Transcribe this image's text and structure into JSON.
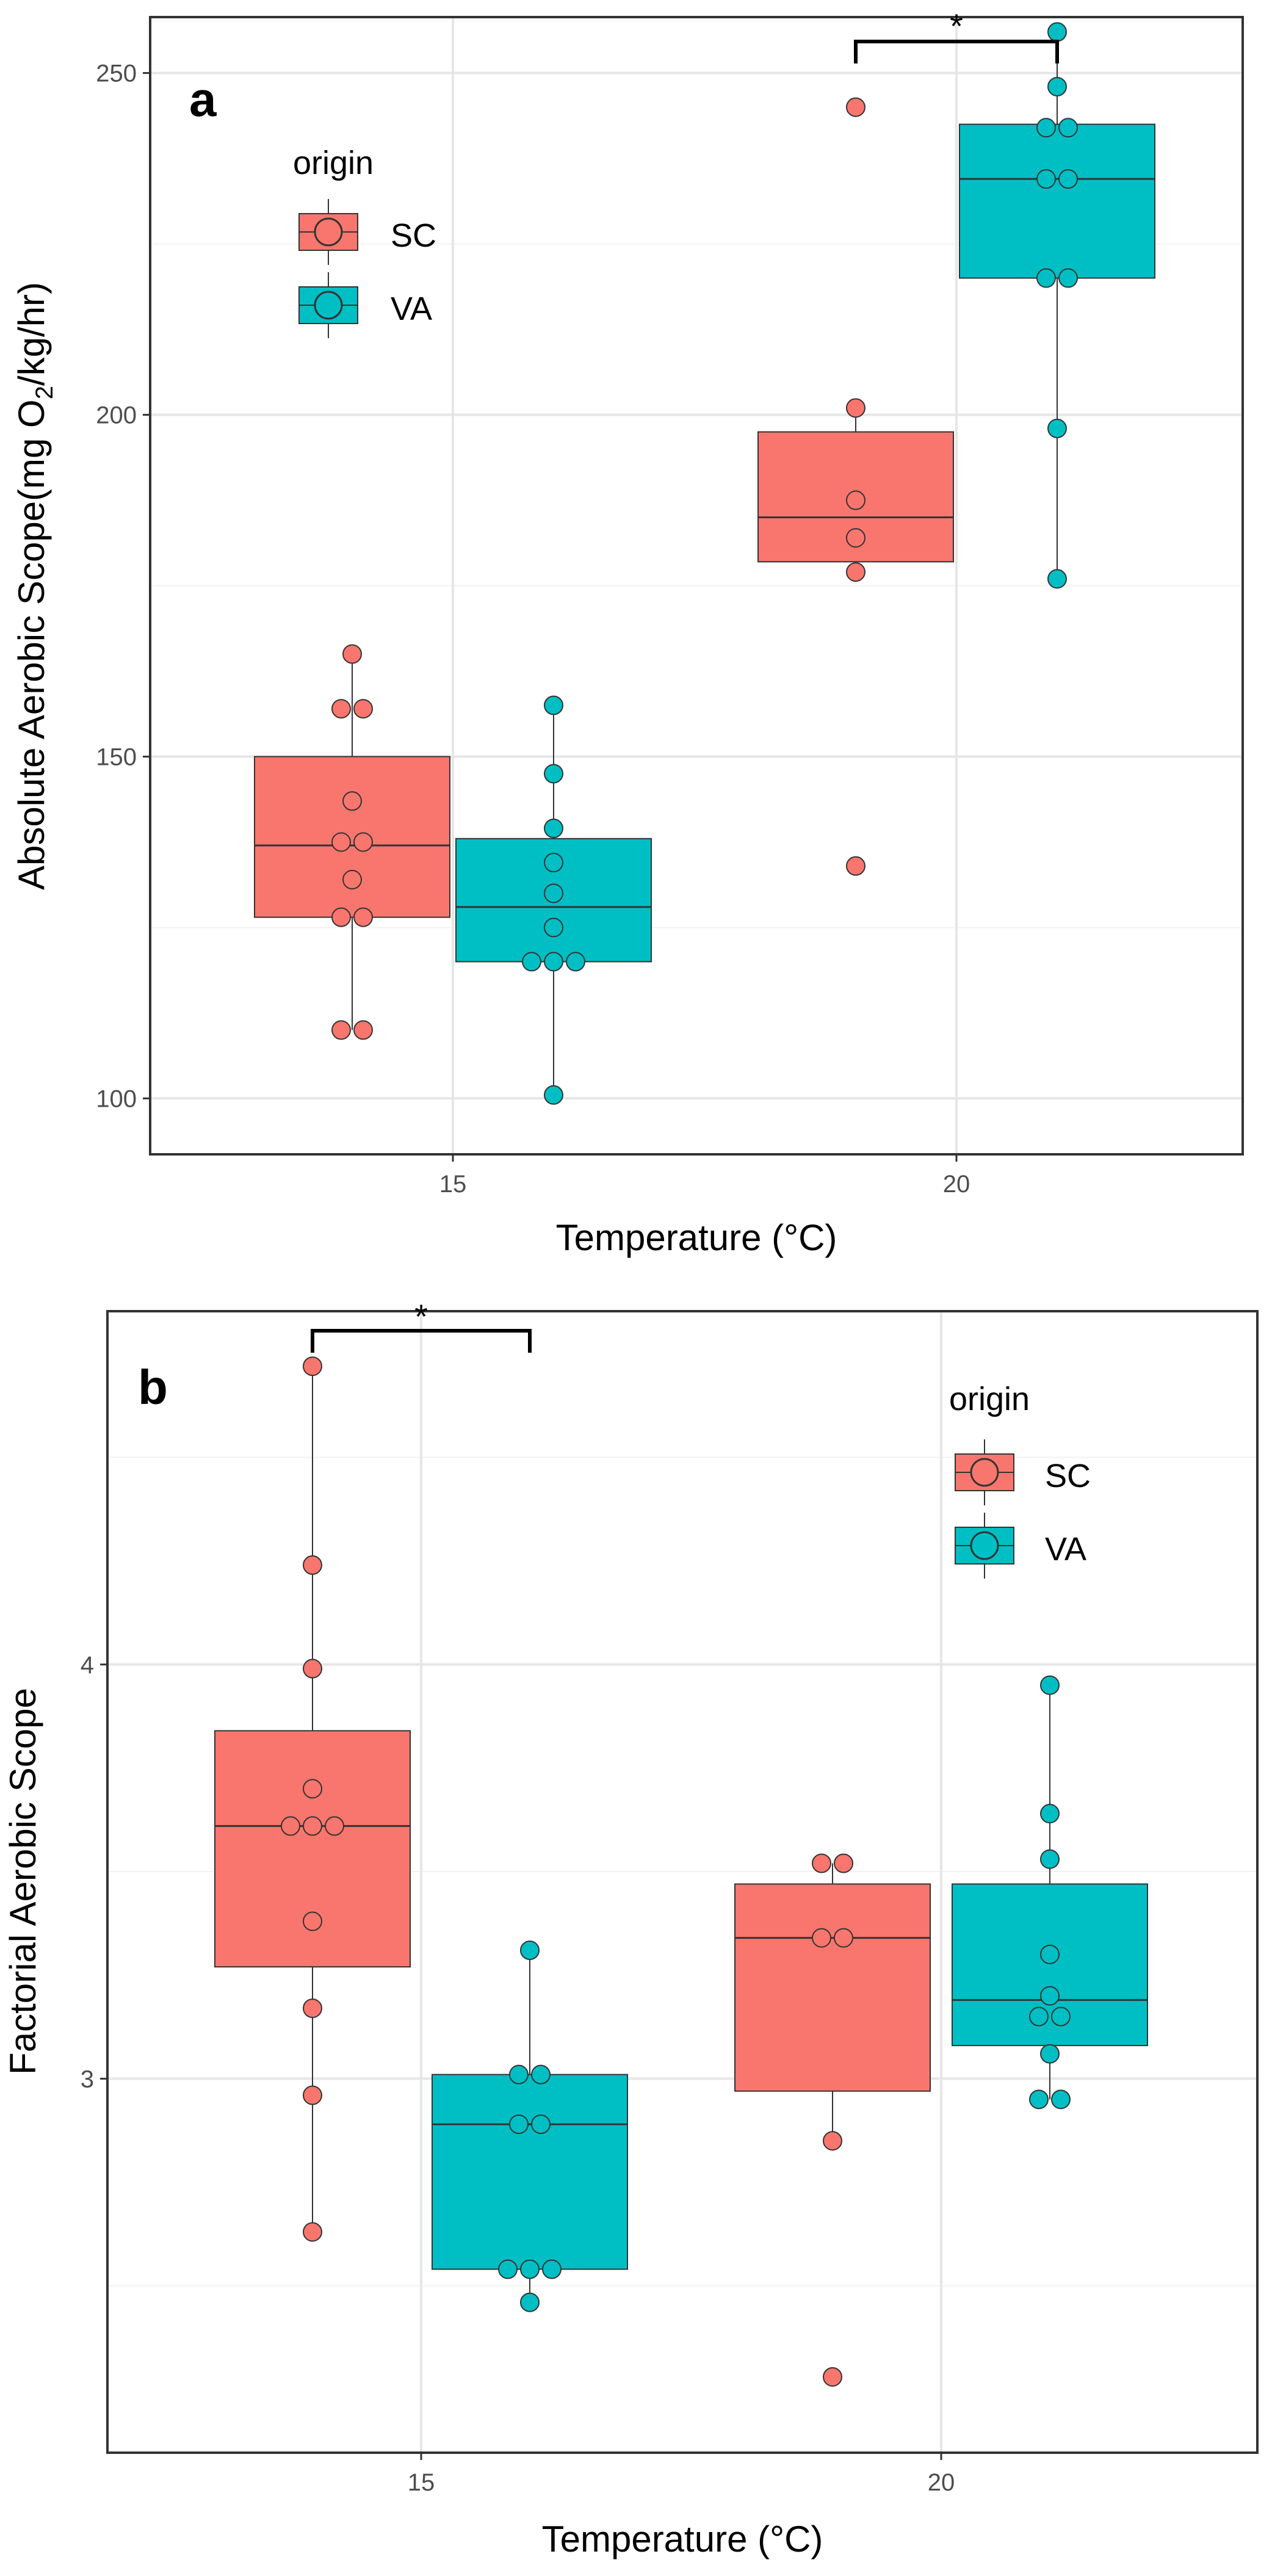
{
  "chart_data": [
    {
      "type": "box",
      "panel_label": "a",
      "xlabel": "Temperature (°C)",
      "ylabel_prefix": "Absolute Aerobic Scope",
      "ylabel_units": {
        "pre": "(mg O",
        "sub": "2",
        "post": "/kg/hr)"
      },
      "categories": [
        "15",
        "20"
      ],
      "yticks": [
        100,
        150,
        200,
        250
      ],
      "ylim": [
        92,
        258
      ],
      "grid": true,
      "legend": {
        "title": "origin",
        "placement": "top-left",
        "entries": [
          "SC",
          "VA"
        ]
      },
      "colors": {
        "SC": "#F8766D",
        "VA": "#00BFC4"
      },
      "series": [
        {
          "name": "SC",
          "boxes": [
            {
              "category": "15",
              "q1": 126.5,
              "median": 137,
              "q3": 150,
              "whisker_low": 110,
              "whisker_high": 165,
              "points": [
                165,
                157,
                157,
                143.5,
                137.5,
                137.5,
                132,
                126.5,
                126.5,
                110,
                110
              ]
            },
            {
              "category": "20",
              "q1": 178.5,
              "median": 185,
              "q3": 197.5,
              "whisker_low": 177,
              "whisker_high": 201,
              "points": [
                245,
                201,
                187.5,
                182,
                177,
                134
              ]
            }
          ]
        },
        {
          "name": "VA",
          "boxes": [
            {
              "category": "15",
              "q1": 120,
              "median": 128,
              "q3": 138,
              "whisker_low": 100.5,
              "whisker_high": 157.5,
              "points": [
                157.5,
                147.5,
                139.5,
                134.5,
                130,
                125,
                120,
                120,
                120,
                100.5
              ]
            },
            {
              "category": "20",
              "q1": 220,
              "median": 234.5,
              "q3": 242.5,
              "whisker_low": 176,
              "whisker_high": 256,
              "points": [
                256,
                248,
                242,
                242,
                234.5,
                234.5,
                220,
                220,
                198,
                176
              ]
            }
          ]
        }
      ],
      "significance": [
        {
          "label": "*",
          "category": "20",
          "between": [
            "SC",
            "VA"
          ]
        }
      ]
    },
    {
      "type": "box",
      "panel_label": "b",
      "xlabel": "Temperature (°C)",
      "ylabel": "Factorial Aerobic Scope",
      "categories": [
        "15",
        "20"
      ],
      "yticks": [
        3,
        4
      ],
      "ylim": [
        2.1,
        4.85
      ],
      "grid": true,
      "legend": {
        "title": "origin",
        "placement": "top-right",
        "entries": [
          "SC",
          "VA"
        ]
      },
      "colors": {
        "SC": "#F8766D",
        "VA": "#00BFC4"
      },
      "series": [
        {
          "name": "SC",
          "boxes": [
            {
              "category": "15",
              "q1": 3.27,
              "median": 3.61,
              "q3": 3.84,
              "whisker_low": 2.63,
              "whisker_high": 4.72,
              "points": [
                4.72,
                4.24,
                3.99,
                3.7,
                3.61,
                3.61,
                3.61,
                3.38,
                3.17,
                2.96,
                2.63
              ]
            },
            {
              "category": "20",
              "q1": 2.97,
              "median": 3.34,
              "q3": 3.47,
              "whisker_low": 2.85,
              "whisker_high": 3.52,
              "points": [
                3.52,
                3.52,
                3.34,
                3.34,
                2.85,
                2.28
              ]
            }
          ]
        },
        {
          "name": "VA",
          "boxes": [
            {
              "category": "15",
              "q1": 2.54,
              "median": 2.89,
              "q3": 3.01,
              "whisker_low": 2.46,
              "whisker_high": 3.31,
              "points": [
                3.31,
                3.01,
                3.01,
                2.89,
                2.89,
                2.54,
                2.54,
                2.54,
                2.46
              ]
            },
            {
              "category": "20",
              "q1": 3.08,
              "median": 3.19,
              "q3": 3.47,
              "whisker_low": 2.95,
              "whisker_high": 3.95,
              "points": [
                3.95,
                3.64,
                3.53,
                3.3,
                3.2,
                3.15,
                3.15,
                3.06,
                2.95,
                2.95
              ]
            }
          ]
        }
      ],
      "significance": [
        {
          "label": "*",
          "category": "15",
          "between": [
            "SC",
            "VA"
          ]
        }
      ]
    }
  ]
}
